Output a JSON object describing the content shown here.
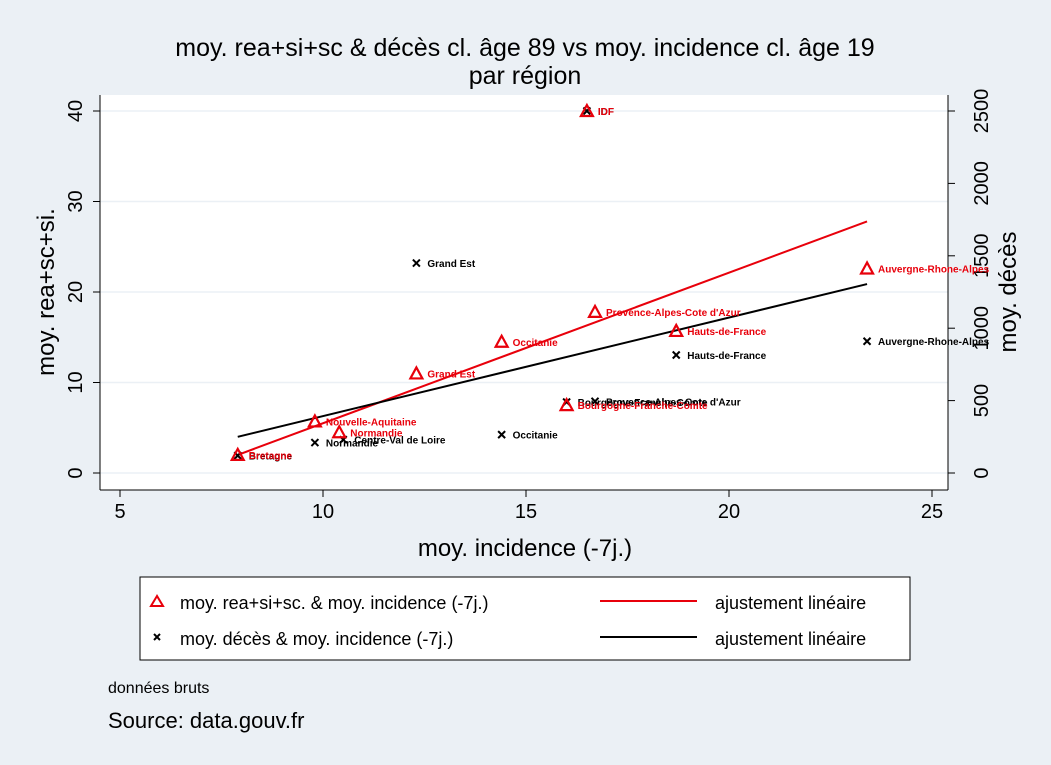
{
  "chart_data": {
    "type": "scatter",
    "title": "moy. rea+si+sc & décès cl. âge 89 vs moy. incidence cl. âge 19",
    "subtitle": "par région",
    "xlabel": "moy. incidence (-7j.)",
    "ylabel_left": "moy. rea+sc+si.",
    "ylabel_right": "moy. décès",
    "xlim": [
      5,
      25
    ],
    "ylim_left": [
      0,
      40
    ],
    "ylim_right": [
      0,
      2500
    ],
    "x_ticks": [
      5,
      10,
      15,
      20,
      25
    ],
    "y_left_ticks": [
      0,
      10,
      20,
      30,
      40
    ],
    "y_right_ticks": [
      0,
      500,
      1000,
      1500,
      2000,
      2500
    ],
    "grid": true,
    "legend_position": "bottom",
    "series": [
      {
        "name": "moy. rea+si+sc. & moy. incidence (-7j.)",
        "axis": "left",
        "marker": "triangle",
        "color": "#e8000b",
        "points": [
          {
            "label": "IDF",
            "x": 16.5,
            "y": 40
          },
          {
            "label": "Auvergne-Rhone-Alpes",
            "x": 23.4,
            "y": 22.6
          },
          {
            "label": "Provence-Alpes-Cote d'Azur",
            "x": 16.7,
            "y": 17.8
          },
          {
            "label": "Hauts-de-France",
            "x": 18.7,
            "y": 15.7
          },
          {
            "label": "Occitanie",
            "x": 14.4,
            "y": 14.5
          },
          {
            "label": "Grand Est",
            "x": 12.3,
            "y": 11
          },
          {
            "label": "Bourgogne-Franche-Comte",
            "x": 16.0,
            "y": 7.5
          },
          {
            "label": "Nouvelle-Aquitaine",
            "x": 9.8,
            "y": 5.7
          },
          {
            "label": "Normandie",
            "x": 10.4,
            "y": 4.5
          },
          {
            "label": "Bretagne",
            "x": 7.9,
            "y": 2
          }
        ]
      },
      {
        "name": "moy. décès & moy. incidence (-7j.)",
        "axis": "right",
        "marker": "x",
        "color": "#000000",
        "points": [
          {
            "label": "IDF",
            "x": 16.5,
            "y": 2500
          },
          {
            "label": "Grand Est",
            "x": 12.3,
            "y": 1450
          },
          {
            "label": "Auvergne-Rhone-Alpes",
            "x": 23.4,
            "y": 910
          },
          {
            "label": "Hauts-de-France",
            "x": 18.7,
            "y": 815
          },
          {
            "label": "Provence-Alpes-Cote d'Azur",
            "x": 16.7,
            "y": 495
          },
          {
            "label": "Bourgogne-Franche-Comte",
            "x": 16.0,
            "y": 490
          },
          {
            "label": "Occitanie",
            "x": 14.4,
            "y": 265
          },
          {
            "label": "Centre-Val de Loire",
            "x": 10.5,
            "y": 230
          },
          {
            "label": "Normandie",
            "x": 9.8,
            "y": 210
          },
          {
            "label": "Bretagne",
            "x": 7.9,
            "y": 120
          }
        ]
      }
    ],
    "fits": [
      {
        "name": "ajustement linéaire",
        "axis": "left",
        "color": "#e8000b",
        "x": [
          7.9,
          23.4
        ],
        "y": [
          2.0,
          27.8
        ]
      },
      {
        "name": "ajustement linéaire",
        "axis": "right",
        "color": "#000000",
        "x": [
          7.9,
          23.4
        ],
        "y": [
          250,
          1305
        ]
      }
    ]
  },
  "notes": {
    "note": "données bruts",
    "source": "Source: data.gouv.fr"
  }
}
